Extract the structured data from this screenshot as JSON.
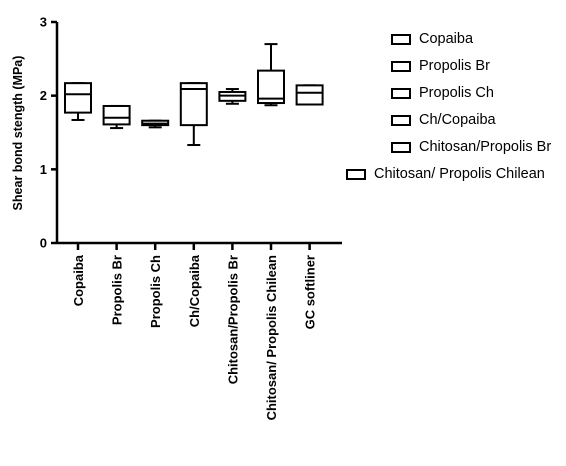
{
  "chart_data": {
    "type": "boxplot",
    "title": "",
    "xlabel": "",
    "ylabel": "Shear bond stength (MPa)",
    "ylim": [
      0,
      3
    ],
    "yticks": [
      "0",
      "1",
      "2",
      "3"
    ],
    "grid": false,
    "legend_position": "right",
    "categories": [
      "Copaiba",
      "Propolis Br",
      "Propolis Ch",
      "Ch/Copaiba",
      "Chitosan/Propolis Br",
      "Chitosan/ Propolis Chilean",
      "GC softliner"
    ],
    "boxes": [
      {
        "name": "Copaiba",
        "min": 1.67,
        "q1": 1.77,
        "median": 2.02,
        "q3": 2.17,
        "max": 2.17
      },
      {
        "name": "Propolis Br",
        "min": 1.56,
        "q1": 1.61,
        "median": 1.7,
        "q3": 1.86,
        "max": 1.86
      },
      {
        "name": "Propolis Ch",
        "min": 1.57,
        "q1": 1.6,
        "median": 1.62,
        "q3": 1.66,
        "max": 1.66
      },
      {
        "name": "Ch/Copaiba",
        "min": 1.33,
        "q1": 1.6,
        "median": 2.09,
        "q3": 2.17,
        "max": 2.17
      },
      {
        "name": "Chitosan/Propolis Br",
        "min": 1.89,
        "q1": 1.93,
        "median": 2.0,
        "q3": 2.05,
        "max": 2.09
      },
      {
        "name": "Chitosan/ Propolis Chilean",
        "min": 1.87,
        "q1": 1.9,
        "median": 1.96,
        "q3": 2.34,
        "max": 2.7
      },
      {
        "name": "GC softliner",
        "min": 1.88,
        "q1": 1.88,
        "median": 2.04,
        "q3": 2.14,
        "max": 2.14
      }
    ],
    "legend": [
      "Copaiba",
      "Propolis Br",
      "Propolis Ch",
      "Ch/Copaiba",
      "Chitosan/Propolis Br",
      "Chitosan/ Propolis Chilean"
    ]
  }
}
